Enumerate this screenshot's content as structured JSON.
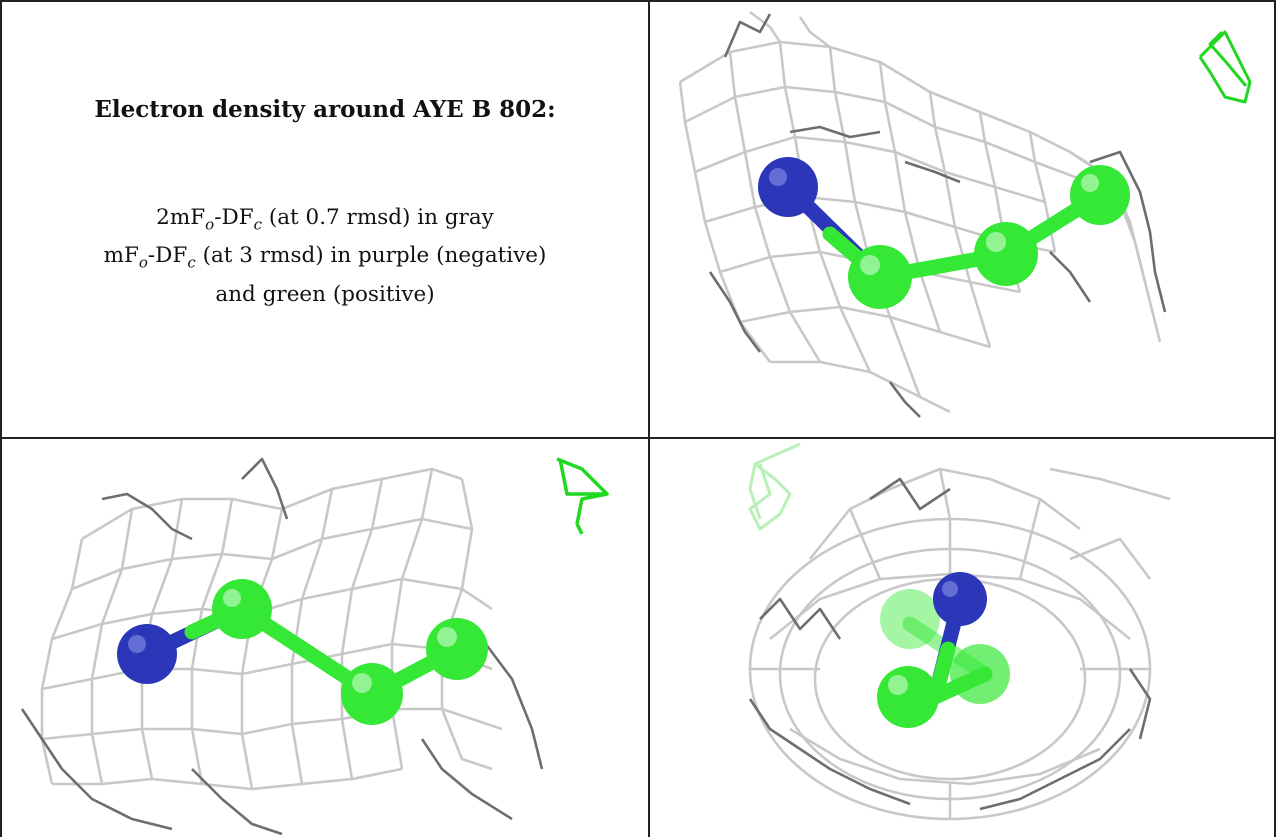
{
  "panel_text": {
    "title": "Electron density around AYE B 802:",
    "line1_prefix": "2mF",
    "line1_sub1": "o",
    "line1_mid": "-DF",
    "line1_sub2": "c",
    "line1_suffix": " (at 0.7 rmsd) in gray",
    "line2_prefix": "mF",
    "line2_sub1": "o",
    "line2_mid": "-DF",
    "line2_sub2": "c",
    "line2_suffix": " (at 3 rmsd) in purple (negative)",
    "line3": "and green (positive)"
  },
  "colors": {
    "mesh_light": "#c8c8c8",
    "mesh_dark": "#6e6e6e",
    "carbon": "#36e836",
    "nitrogen": "#2c36b8",
    "positive_density": "#1fd81f",
    "border": "#222222"
  },
  "views": [
    {
      "name": "view-top-right",
      "atoms": [
        "nitrogen",
        "carbon",
        "carbon",
        "carbon"
      ]
    },
    {
      "name": "view-bottom-left",
      "atoms": [
        "nitrogen",
        "carbon",
        "carbon",
        "carbon"
      ]
    },
    {
      "name": "view-bottom-right",
      "atoms": [
        "nitrogen",
        "carbon",
        "carbon",
        "carbon"
      ]
    }
  ]
}
